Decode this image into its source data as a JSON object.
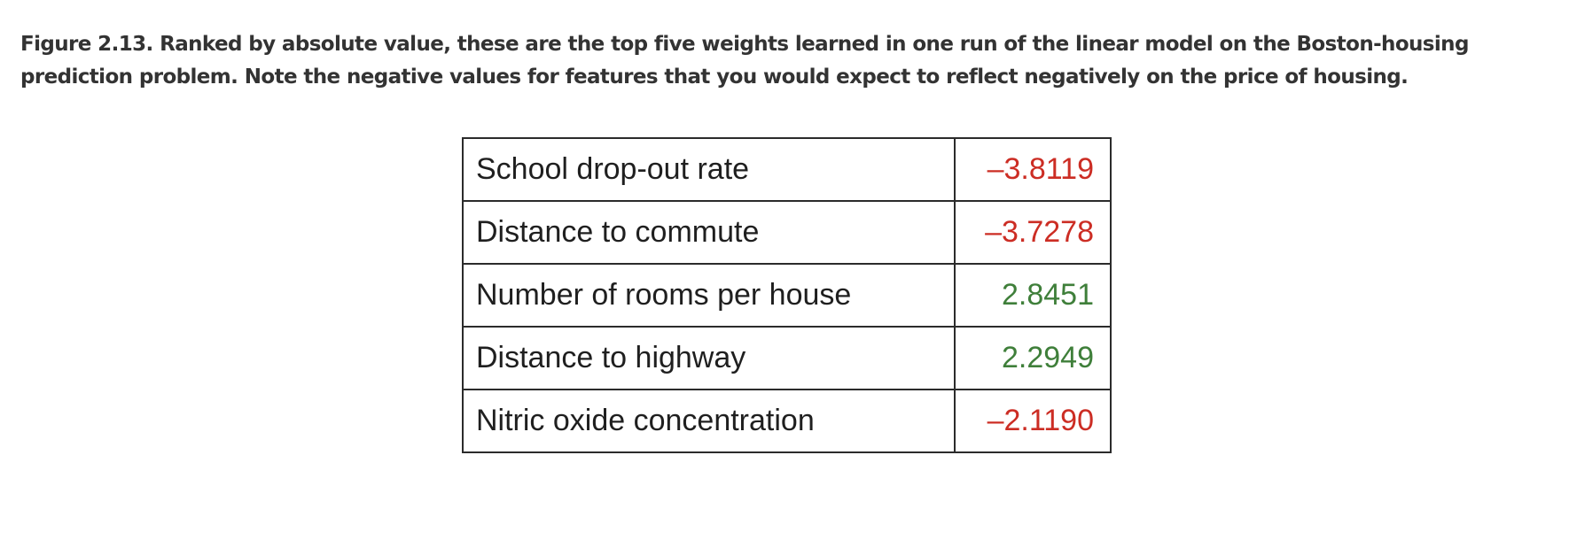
{
  "caption": {
    "label": "Figure 2.13.",
    "text": "Ranked by absolute value, these are the top five weights learned in one run of the linear model on the Boston-housing prediction problem. Note the negative values for features that you would expect to reflect negatively on the price of housing."
  },
  "chart_data": {
    "type": "table",
    "columns": [],
    "rows": [
      {
        "feature": "School drop-out rate",
        "weight": -3.8119,
        "display": "–3.8119"
      },
      {
        "feature": "Distance to commute",
        "weight": -3.7278,
        "display": "–3.7278"
      },
      {
        "feature": "Number of rooms per house",
        "weight": 2.8451,
        "display": "2.8451"
      },
      {
        "feature": "Distance to highway",
        "weight": 2.2949,
        "display": "2.2949"
      },
      {
        "feature": "Nitric oxide concentration",
        "weight": -2.119,
        "display": "–2.1190"
      }
    ]
  },
  "colors": {
    "negative": "#cc2d24",
    "positive": "#3f7f3a",
    "text": "#1f1f1f",
    "caption": "#333333",
    "border": "#2b2b2b"
  }
}
